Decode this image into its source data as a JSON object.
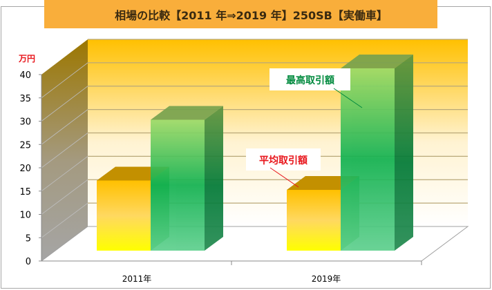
{
  "title": "相場の比較【2011 年⇒2019 年】250SB【実働車】",
  "unit_label": "万円",
  "colors": {
    "title_bg": "#f9ae3b",
    "unit_label": "#e8151b",
    "avg_callout": "#e8151b",
    "max_callout": "#008a3e",
    "avg_bar": "#ffc000",
    "max_bar": "#10b050"
  },
  "callouts": {
    "max_label": "最高取引額",
    "avg_label": "平均取引額"
  },
  "chart_data": {
    "type": "bar",
    "title": "相場の比較【2011 年⇒2019 年】250SB【実働車】",
    "xlabel": "",
    "ylabel": "万円",
    "ylim": [
      0,
      40
    ],
    "yticks": [
      0,
      5,
      10,
      15,
      20,
      25,
      30,
      35,
      40
    ],
    "categories": [
      "2011年",
      "2019年"
    ],
    "series": [
      {
        "name": "平均取引額",
        "values": [
          15,
          13
        ]
      },
      {
        "name": "最高取引額",
        "values": [
          28,
          39
        ]
      }
    ],
    "grid": true,
    "style": "3d-clustered-column",
    "legend": "callout labels (平均取引額 red, 最高取引額 green) on 2019 bars"
  }
}
